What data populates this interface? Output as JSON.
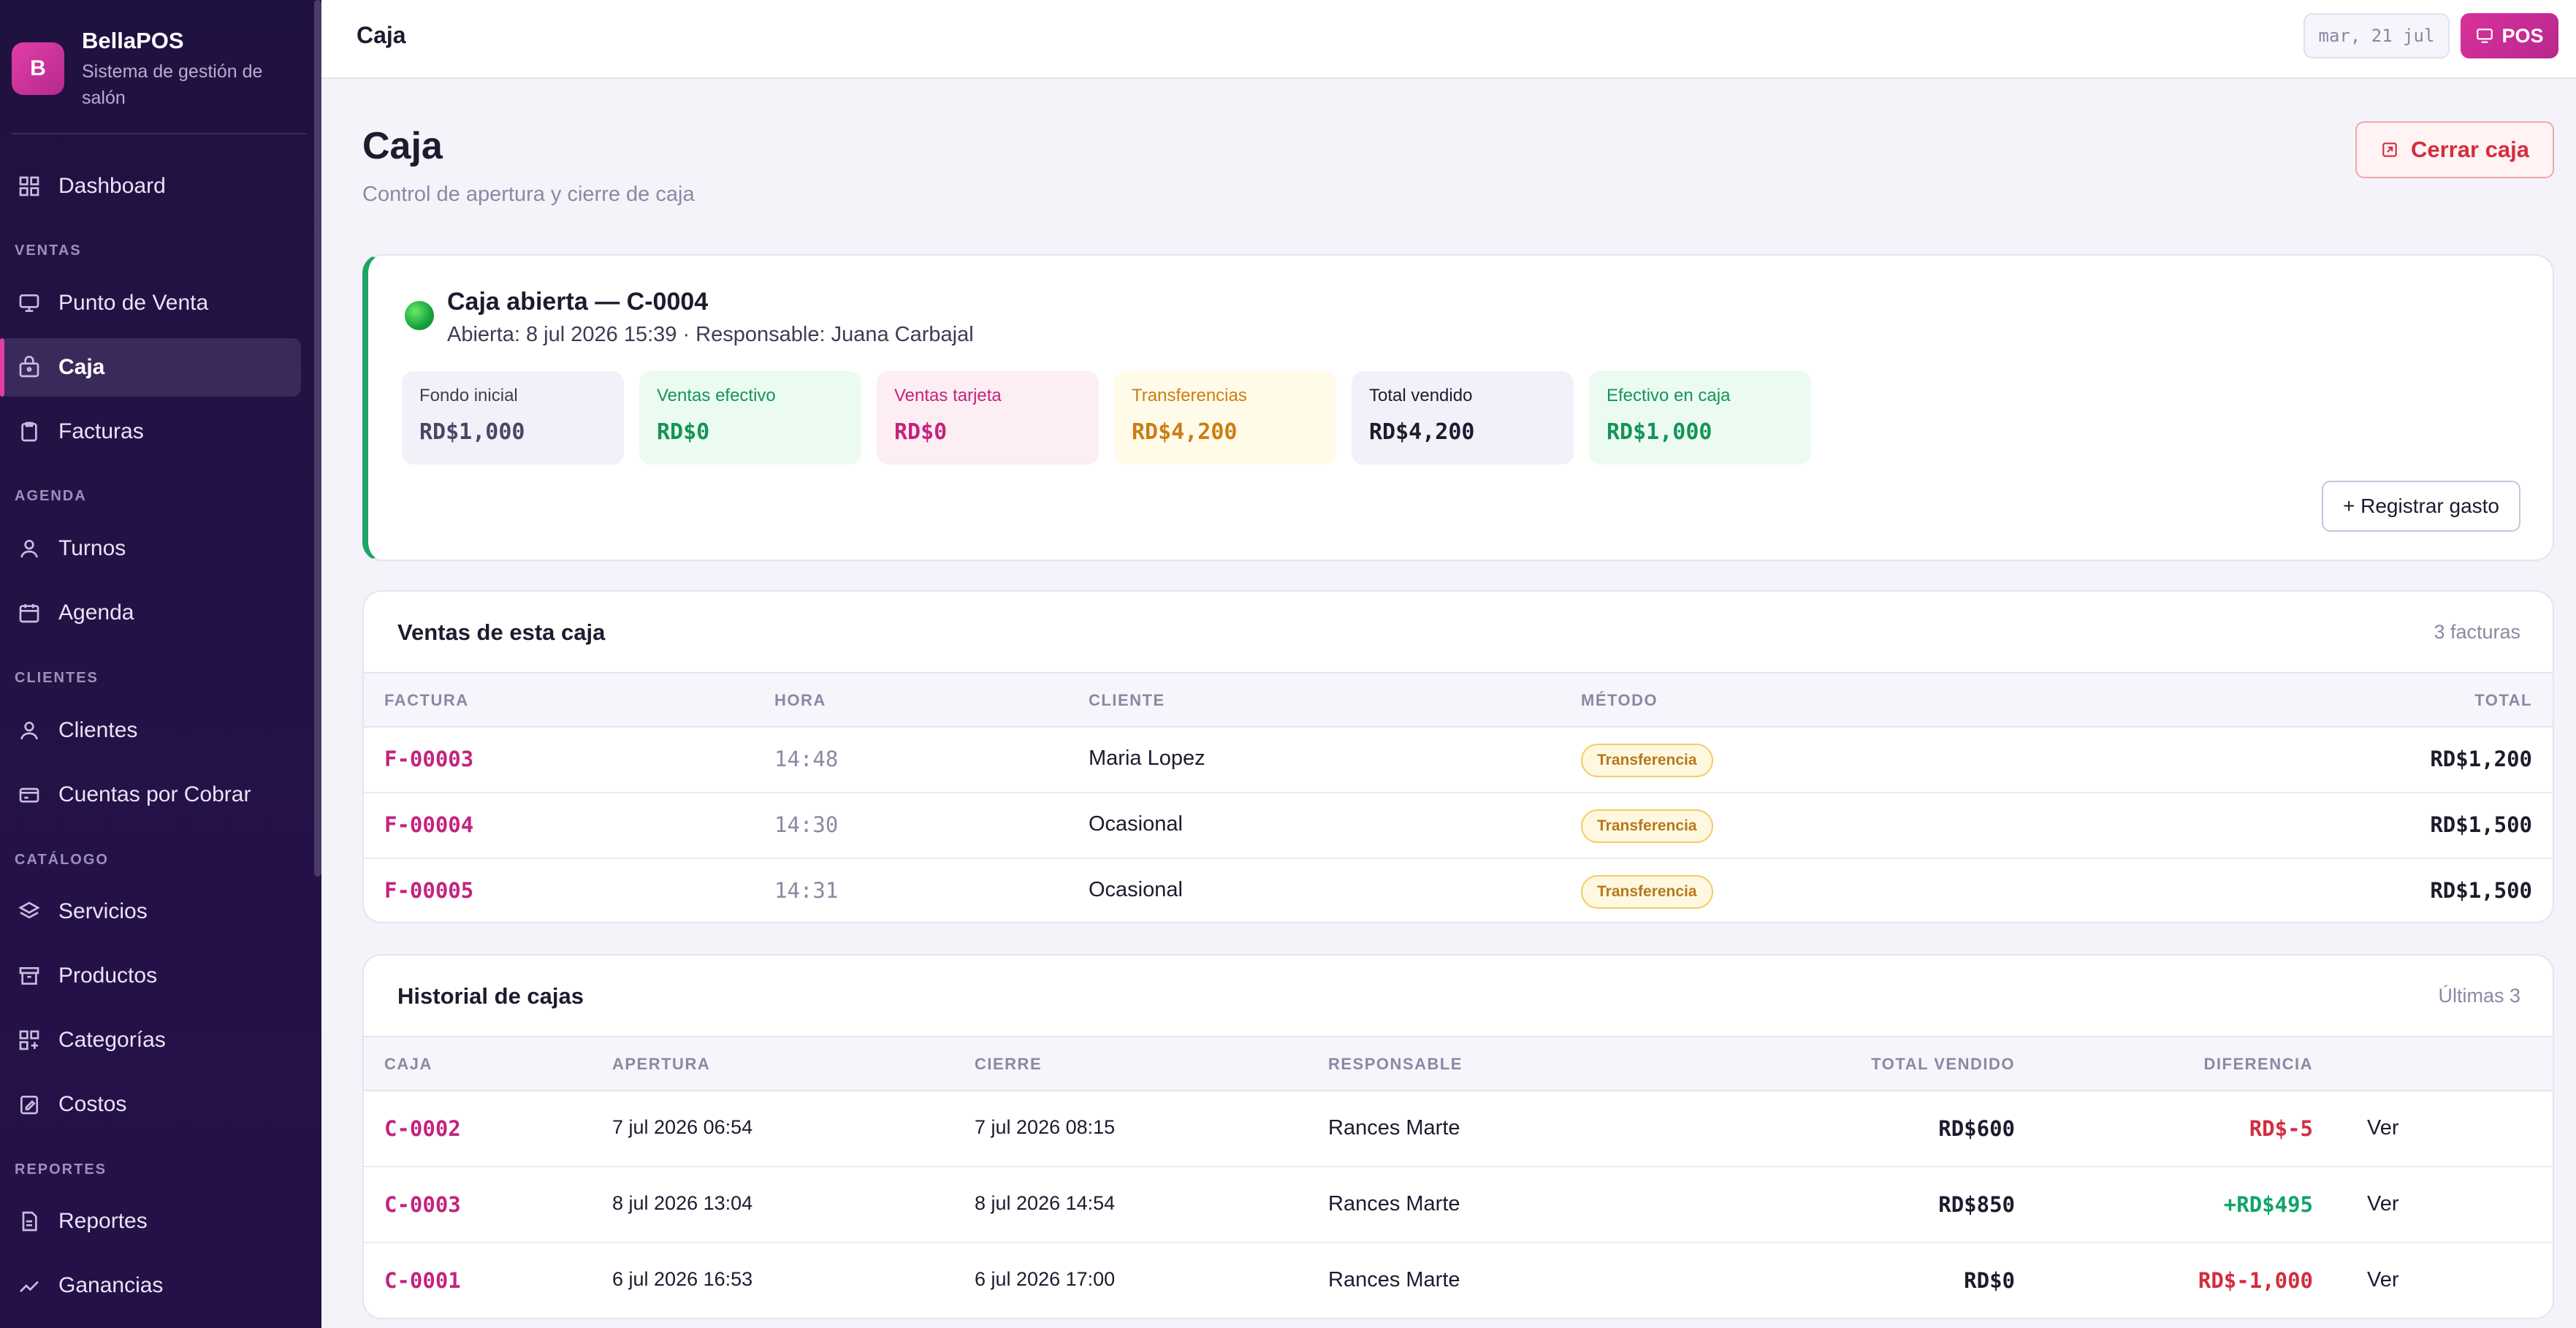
{
  "brand": {
    "initial": "B",
    "name": "BellaPOS",
    "subtitle": "Sistema de gestión de salón"
  },
  "sidebar": {
    "sections": {
      "ventas": "VENTAS",
      "agenda": "AGENDA",
      "clientes": "CLIENTES",
      "catalogo": "CATÁLOGO",
      "reportes": "REPORTES"
    },
    "items": [
      {
        "label": "Dashboard",
        "icon": "dashboard-icon"
      },
      {
        "label": "Punto de Venta",
        "icon": "pos-icon"
      },
      {
        "label": "Caja",
        "icon": "cash-register-icon",
        "active": true
      },
      {
        "label": "Facturas",
        "icon": "invoice-icon"
      },
      {
        "label": "Turnos",
        "icon": "user-icon"
      },
      {
        "label": "Agenda",
        "icon": "calendar-icon"
      },
      {
        "label": "Clientes",
        "icon": "client-icon"
      },
      {
        "label": "Cuentas por Cobrar",
        "icon": "credit-card-icon"
      },
      {
        "label": "Servicios",
        "icon": "layers-icon"
      },
      {
        "label": "Productos",
        "icon": "box-icon"
      },
      {
        "label": "Categorías",
        "icon": "categories-icon"
      },
      {
        "label": "Costos",
        "icon": "edit-icon"
      },
      {
        "label": "Reportes",
        "icon": "report-icon"
      },
      {
        "label": "Ganancias",
        "icon": "trend-icon"
      }
    ]
  },
  "topbar": {
    "title": "Caja",
    "date": "mar, 21 jul",
    "pos_label": "POS"
  },
  "page": {
    "title": "Caja",
    "subtitle": "Control de apertura y cierre de caja",
    "close_label": "Cerrar caja"
  },
  "open_register": {
    "title": "Caja abierta — C-0004",
    "meta": "Abierta: 8 jul 2026 15:39 · Responsable: Juana Carbajal",
    "stats": [
      {
        "label": "Fondo inicial",
        "value": "RD$1,000"
      },
      {
        "label": "Ventas efectivo",
        "value": "RD$0"
      },
      {
        "label": "Ventas tarjeta",
        "value": "RD$0"
      },
      {
        "label": "Transferencias",
        "value": "RD$4,200"
      },
      {
        "label": "Total vendido",
        "value": "RD$4,200"
      },
      {
        "label": "Efectivo en caja",
        "value": "RD$1,000"
      }
    ],
    "expense_label": "+ Registrar gasto"
  },
  "sales": {
    "title": "Ventas de esta caja",
    "count": "3 facturas",
    "headers": [
      "FACTURA",
      "HORA",
      "CLIENTE",
      "MÉTODO",
      "TOTAL"
    ],
    "rows": [
      {
        "factura": "F-00003",
        "hora": "14:48",
        "cliente": "Maria Lopez",
        "metodo": "Transferencia",
        "total": "RD$1,200"
      },
      {
        "factura": "F-00004",
        "hora": "14:30",
        "cliente": "Ocasional",
        "metodo": "Transferencia",
        "total": "RD$1,500"
      },
      {
        "factura": "F-00005",
        "hora": "14:31",
        "cliente": "Ocasional",
        "metodo": "Transferencia",
        "total": "RD$1,500"
      }
    ]
  },
  "history": {
    "title": "Historial de cajas",
    "count": "Últimas 3",
    "headers": [
      "CAJA",
      "APERTURA",
      "CIERRE",
      "RESPONSABLE",
      "TOTAL VENDIDO",
      "DIFERENCIA"
    ],
    "rows": [
      {
        "caja": "C-0002",
        "apertura": "7 jul 2026 06:54",
        "cierre": "7 jul 2026 08:15",
        "responsable": "Rances Marte",
        "total": "RD$600",
        "diferencia": "RD$-5",
        "ver": "Ver"
      },
      {
        "caja": "C-0003",
        "apertura": "8 jul 2026 13:04",
        "cierre": "8 jul 2026 14:54",
        "responsable": "Rances Marte",
        "total": "RD$850",
        "diferencia": "+RD$495",
        "ver": "Ver"
      },
      {
        "caja": "C-0001",
        "apertura": "6 jul 2026 16:53",
        "cierre": "6 jul 2026 17:00",
        "responsable": "Rances Marte",
        "total": "RD$0",
        "diferencia": "RD$-1,000",
        "ver": "Ver"
      }
    ]
  },
  "colors": {
    "accent": "#c4237f",
    "success": "#11a46a",
    "danger": "#d42d3e",
    "sidebar": "#1f1140"
  }
}
